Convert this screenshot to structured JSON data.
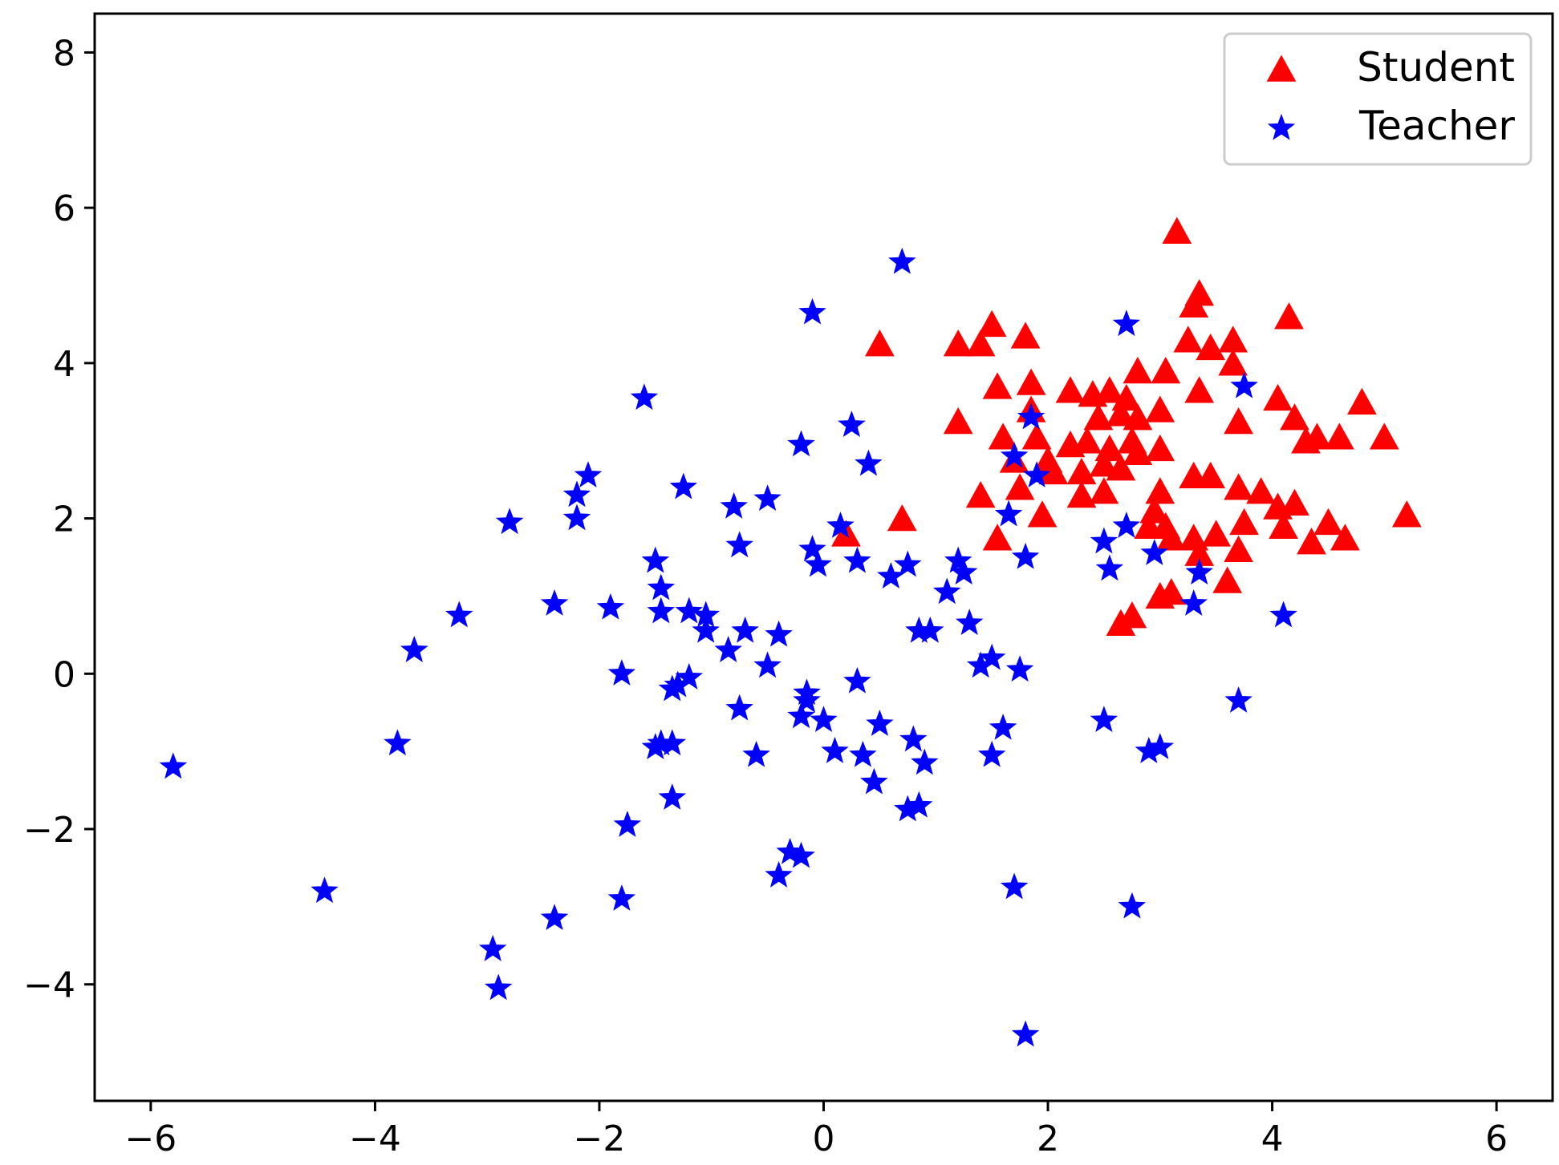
{
  "chart_data": {
    "type": "scatter",
    "title": "",
    "xlabel": "",
    "ylabel": "",
    "xlim": [
      -6.5,
      6.5
    ],
    "ylim": [
      -5.5,
      8.5
    ],
    "xticks": [
      -6,
      -4,
      -2,
      0,
      2,
      4,
      6
    ],
    "yticks": [
      -4,
      -2,
      0,
      2,
      4,
      6,
      8
    ],
    "xtick_labels": [
      "−6",
      "−4",
      "−2",
      "0",
      "2",
      "4",
      "6"
    ],
    "ytick_labels": [
      "−4",
      "−2",
      "0",
      "2",
      "4",
      "6",
      "8"
    ],
    "grid": false,
    "legend_position": "top-right",
    "series": [
      {
        "name": "Student",
        "marker": "triangle",
        "color": "#ff0000",
        "points": [
          [
            3.15,
            5.7
          ],
          [
            3.35,
            4.9
          ],
          [
            3.3,
            4.75
          ],
          [
            4.15,
            4.6
          ],
          [
            1.5,
            4.5
          ],
          [
            1.8,
            4.35
          ],
          [
            0.5,
            4.25
          ],
          [
            1.2,
            4.25
          ],
          [
            1.4,
            4.25
          ],
          [
            3.25,
            4.3
          ],
          [
            3.45,
            4.2
          ],
          [
            3.65,
            4.3
          ],
          [
            3.65,
            4.0
          ],
          [
            2.8,
            3.9
          ],
          [
            3.05,
            3.9
          ],
          [
            1.55,
            3.7
          ],
          [
            1.85,
            3.75
          ],
          [
            2.2,
            3.65
          ],
          [
            2.4,
            3.6
          ],
          [
            2.55,
            3.65
          ],
          [
            2.7,
            3.55
          ],
          [
            3.35,
            3.65
          ],
          [
            4.05,
            3.55
          ],
          [
            4.8,
            3.5
          ],
          [
            1.2,
            3.25
          ],
          [
            1.85,
            3.4
          ],
          [
            2.45,
            3.3
          ],
          [
            2.65,
            3.35
          ],
          [
            2.8,
            3.3
          ],
          [
            3.0,
            3.4
          ],
          [
            3.7,
            3.25
          ],
          [
            4.2,
            3.3
          ],
          [
            1.6,
            3.05
          ],
          [
            1.9,
            3.05
          ],
          [
            2.2,
            2.95
          ],
          [
            2.35,
            3.0
          ],
          [
            2.55,
            2.9
          ],
          [
            2.75,
            3.0
          ],
          [
            3.0,
            2.9
          ],
          [
            4.3,
            3.0
          ],
          [
            4.4,
            3.05
          ],
          [
            4.6,
            3.05
          ],
          [
            5.0,
            3.05
          ],
          [
            1.7,
            2.75
          ],
          [
            2.0,
            2.75
          ],
          [
            2.3,
            2.6
          ],
          [
            2.5,
            2.7
          ],
          [
            2.65,
            2.65
          ],
          [
            2.8,
            2.85
          ],
          [
            1.75,
            2.4
          ],
          [
            2.05,
            2.6
          ],
          [
            3.3,
            2.55
          ],
          [
            3.45,
            2.55
          ],
          [
            1.4,
            2.3
          ],
          [
            2.3,
            2.3
          ],
          [
            2.5,
            2.35
          ],
          [
            3.0,
            2.35
          ],
          [
            3.7,
            2.4
          ],
          [
            3.9,
            2.35
          ],
          [
            4.05,
            2.15
          ],
          [
            4.2,
            2.2
          ],
          [
            0.7,
            2.0
          ],
          [
            1.95,
            2.05
          ],
          [
            2.95,
            2.1
          ],
          [
            3.05,
            1.9
          ],
          [
            3.5,
            1.8
          ],
          [
            3.75,
            1.95
          ],
          [
            4.1,
            1.9
          ],
          [
            4.5,
            1.95
          ],
          [
            5.2,
            2.05
          ],
          [
            0.2,
            1.8
          ],
          [
            1.55,
            1.75
          ],
          [
            2.9,
            1.9
          ],
          [
            3.1,
            1.75
          ],
          [
            3.3,
            1.75
          ],
          [
            3.35,
            1.55
          ],
          [
            3.7,
            1.6
          ],
          [
            4.35,
            1.7
          ],
          [
            4.65,
            1.75
          ],
          [
            3.0,
            1.0
          ],
          [
            3.1,
            1.05
          ],
          [
            3.6,
            1.2
          ],
          [
            2.65,
            0.65
          ],
          [
            2.75,
            0.75
          ]
        ]
      },
      {
        "name": "Teacher",
        "marker": "star",
        "color": "#0000ff",
        "points": [
          [
            0.7,
            5.3
          ],
          [
            -0.1,
            4.65
          ],
          [
            2.7,
            4.5
          ],
          [
            3.75,
            3.7
          ],
          [
            -1.6,
            3.55
          ],
          [
            1.85,
            3.3
          ],
          [
            0.25,
            3.2
          ],
          [
            -0.2,
            2.95
          ],
          [
            1.7,
            2.8
          ],
          [
            0.4,
            2.7
          ],
          [
            1.9,
            2.55
          ],
          [
            -2.1,
            2.55
          ],
          [
            -2.2,
            2.3
          ],
          [
            -1.25,
            2.4
          ],
          [
            -0.5,
            2.25
          ],
          [
            -0.8,
            2.15
          ],
          [
            1.65,
            2.05
          ],
          [
            -2.2,
            2.0
          ],
          [
            -2.8,
            1.95
          ],
          [
            0.15,
            1.9
          ],
          [
            2.7,
            1.9
          ],
          [
            -0.75,
            1.65
          ],
          [
            -0.1,
            1.6
          ],
          [
            2.5,
            1.7
          ],
          [
            2.95,
            1.55
          ],
          [
            -1.5,
            1.45
          ],
          [
            -0.05,
            1.4
          ],
          [
            0.3,
            1.45
          ],
          [
            0.75,
            1.4
          ],
          [
            1.2,
            1.45
          ],
          [
            1.8,
            1.5
          ],
          [
            0.6,
            1.25
          ],
          [
            1.25,
            1.3
          ],
          [
            2.55,
            1.35
          ],
          [
            3.35,
            1.3
          ],
          [
            -1.45,
            1.1
          ],
          [
            1.1,
            1.05
          ],
          [
            -3.25,
            0.75
          ],
          [
            -2.4,
            0.9
          ],
          [
            -1.9,
            0.85
          ],
          [
            -1.45,
            0.8
          ],
          [
            -1.2,
            0.8
          ],
          [
            -1.05,
            0.75
          ],
          [
            3.3,
            0.9
          ],
          [
            4.1,
            0.75
          ],
          [
            -1.05,
            0.55
          ],
          [
            -0.7,
            0.55
          ],
          [
            -0.4,
            0.5
          ],
          [
            0.85,
            0.55
          ],
          [
            0.95,
            0.55
          ],
          [
            1.3,
            0.65
          ],
          [
            -3.65,
            0.3
          ],
          [
            -0.85,
            0.3
          ],
          [
            -0.5,
            0.1
          ],
          [
            1.4,
            0.1
          ],
          [
            1.5,
            0.2
          ],
          [
            1.75,
            0.05
          ],
          [
            -1.8,
            0.0
          ],
          [
            -1.3,
            -0.15
          ],
          [
            -1.35,
            -0.2
          ],
          [
            -1.2,
            -0.05
          ],
          [
            0.3,
            -0.1
          ],
          [
            -0.15,
            -0.25
          ],
          [
            -0.15,
            -0.35
          ],
          [
            -0.75,
            -0.45
          ],
          [
            -0.2,
            -0.55
          ],
          [
            0.0,
            -0.6
          ],
          [
            0.5,
            -0.65
          ],
          [
            2.5,
            -0.6
          ],
          [
            1.6,
            -0.7
          ],
          [
            3.7,
            -0.35
          ],
          [
            -3.8,
            -0.9
          ],
          [
            -1.5,
            -0.95
          ],
          [
            -1.45,
            -0.9
          ],
          [
            -1.35,
            -0.9
          ],
          [
            0.8,
            -0.85
          ],
          [
            -0.6,
            -1.05
          ],
          [
            0.1,
            -1.0
          ],
          [
            0.35,
            -1.05
          ],
          [
            0.9,
            -1.15
          ],
          [
            1.5,
            -1.05
          ],
          [
            2.9,
            -1.0
          ],
          [
            3.0,
            -0.95
          ],
          [
            -5.8,
            -1.2
          ],
          [
            0.45,
            -1.4
          ],
          [
            -1.35,
            -1.6
          ],
          [
            0.75,
            -1.75
          ],
          [
            0.85,
            -1.7
          ],
          [
            -1.75,
            -1.95
          ],
          [
            -0.3,
            -2.3
          ],
          [
            -0.2,
            -2.35
          ],
          [
            -0.4,
            -2.6
          ],
          [
            1.7,
            -2.75
          ],
          [
            -4.45,
            -2.8
          ],
          [
            -1.8,
            -2.9
          ],
          [
            2.75,
            -3.0
          ],
          [
            -2.4,
            -3.15
          ],
          [
            -2.95,
            -3.55
          ],
          [
            -2.9,
            -4.05
          ],
          [
            1.8,
            -4.65
          ]
        ]
      }
    ]
  }
}
